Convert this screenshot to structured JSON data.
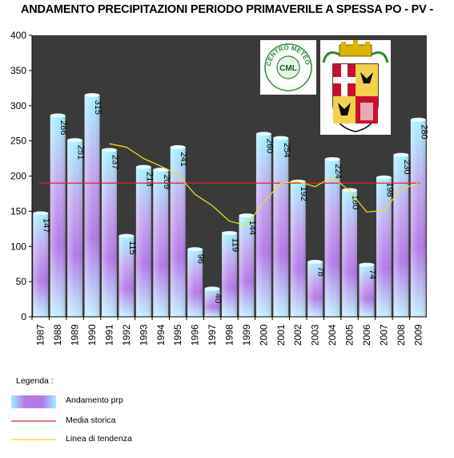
{
  "chart_data": {
    "type": "bar",
    "title": "ANDAMENTO PRECIPITAZIONI PERIODO PRIMAVERILE A SPESSA PO - PV -",
    "categories": [
      "1987",
      "1988",
      "1989",
      "1990",
      "1991",
      "1992",
      "1993",
      "1994",
      "1995",
      "1996",
      "1997",
      "1998",
      "1999",
      "2000",
      "2001",
      "2002",
      "2003",
      "2004",
      "2005",
      "2006",
      "2007",
      "2008",
      "2009"
    ],
    "series": [
      {
        "name": "Andamento prp",
        "values": [
          147,
          286,
          251,
          315,
          237,
          115,
          213,
          209,
          241,
          96,
          40,
          119,
          144,
          260,
          254,
          192,
          78,
          224,
          180,
          74,
          198,
          230,
          280
        ]
      }
    ],
    "media_storica": 190,
    "linea_di_tendenza": [
      null,
      null,
      null,
      null,
      246,
      241,
      225,
      214,
      202,
      174,
      158,
      136,
      130,
      163,
      190,
      192,
      185,
      199,
      179,
      149,
      151,
      181,
      190
    ],
    "ylim": [
      0,
      400
    ],
    "yticks": [
      0,
      50,
      100,
      150,
      200,
      250,
      300,
      350,
      400
    ],
    "xlabel": "",
    "ylabel": "",
    "grid": false,
    "colors": {
      "plot_bg": "#3a3a3a",
      "bar_top": "#9fefff",
      "bar_mid": "#b67fe6",
      "bar_bottom": "#b8ecff",
      "media": "#e0202b",
      "tendenza": "#f2e31a"
    }
  },
  "legend": {
    "title": "Legenda :",
    "items": [
      {
        "label": "Andamento prp"
      },
      {
        "label": "Media storica"
      },
      {
        "label": "Linea di tendenza"
      }
    ]
  },
  "logos": {
    "left_text": "CENTRO METEO LOMBARDO",
    "left_initials": "CML"
  }
}
